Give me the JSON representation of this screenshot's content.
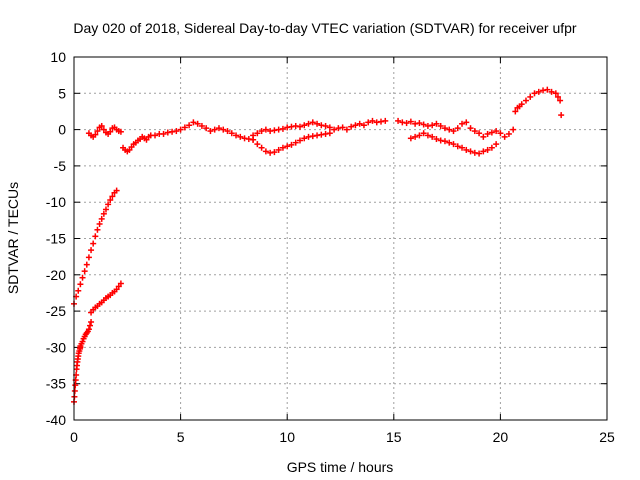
{
  "chart_data": {
    "type": "scatter",
    "title": "Day 020 of 2018, Sidereal Day-to-day VTEC variation (SDTVAR) for receiver ufpr",
    "xlabel": "GPS time / hours",
    "ylabel": "SDTVAR / TECUs",
    "xlim": [
      0,
      25
    ],
    "ylim": [
      -40,
      10
    ],
    "x_ticks": [
      0,
      5,
      10,
      15,
      20,
      25
    ],
    "y_ticks": [
      -40,
      -35,
      -30,
      -25,
      -20,
      -15,
      -10,
      -5,
      0,
      5,
      10
    ],
    "grid": true,
    "marker": "plus",
    "series_color": "#ff0000",
    "series": [
      {
        "x": [
          0.0,
          0.02,
          0.04,
          0.06,
          0.08,
          0.1,
          0.12,
          0.14,
          0.16,
          0.18,
          0.2,
          0.22,
          0.25,
          0.28,
          0.3
        ],
        "y": [
          -37.5,
          -36.8,
          -36.0,
          -35.2,
          -34.5,
          -33.8,
          -33.0,
          -32.5,
          -32.0,
          -31.6,
          -31.2,
          -30.8,
          -30.5,
          -30.2,
          -30.0
        ]
      },
      {
        "x": [
          0.3,
          0.35,
          0.4,
          0.45,
          0.5,
          0.55,
          0.6,
          0.65,
          0.7,
          0.75,
          0.8
        ],
        "y": [
          -29.8,
          -29.5,
          -29.2,
          -28.8,
          -28.5,
          -28.2,
          -28.0,
          -27.8,
          -27.5,
          -27.0,
          -26.5
        ]
      },
      {
        "x": [
          0.8,
          0.9,
          1.0,
          1.1,
          1.2,
          1.3,
          1.4,
          1.5,
          1.6,
          1.7,
          1.8,
          1.9,
          2.0,
          2.1,
          2.2
        ],
        "y": [
          -25.2,
          -24.8,
          -24.5,
          -24.3,
          -24.0,
          -23.8,
          -23.5,
          -23.2,
          -23.0,
          -22.8,
          -22.5,
          -22.3,
          -22.0,
          -21.6,
          -21.2
        ]
      },
      {
        "x": [
          0.0,
          0.1,
          0.2,
          0.3,
          0.4,
          0.5,
          0.6,
          0.7,
          0.8,
          0.9,
          1.0,
          1.1,
          1.2,
          1.3,
          1.4,
          1.5,
          1.6,
          1.7,
          1.8,
          1.9,
          2.0
        ],
        "y": [
          -24.0,
          -23.0,
          -22.2,
          -21.3,
          -20.4,
          -19.5,
          -18.6,
          -17.6,
          -16.6,
          -15.7,
          -14.7,
          -13.8,
          -13.0,
          -12.3,
          -11.6,
          -11.0,
          -10.3,
          -9.7,
          -9.2,
          -8.7,
          -8.4
        ]
      },
      {
        "x": [
          0.7,
          0.8,
          0.9,
          1.0,
          1.1,
          1.2,
          1.3,
          1.4,
          1.5,
          1.6,
          1.7,
          1.8,
          1.9,
          2.0,
          2.1,
          2.2
        ],
        "y": [
          -0.5,
          -0.8,
          -1.0,
          -0.7,
          -0.2,
          0.3,
          0.5,
          0.0,
          -0.4,
          -0.6,
          -0.3,
          0.2,
          0.3,
          0.0,
          -0.2,
          -0.3
        ]
      },
      {
        "x": [
          2.3,
          2.4,
          2.5,
          2.6,
          2.7,
          2.8,
          2.9,
          3.0,
          3.1,
          3.2,
          3.3,
          3.4,
          3.5,
          3.6,
          3.8,
          4.0,
          4.2,
          4.4,
          4.6,
          4.8,
          5.0,
          5.2,
          5.4,
          5.6,
          5.8,
          6.0,
          6.2,
          6.4,
          6.6,
          6.8,
          7.0,
          7.2,
          7.4,
          7.6,
          7.8,
          8.0,
          8.2,
          8.4
        ],
        "y": [
          -2.5,
          -2.8,
          -3.0,
          -2.8,
          -2.4,
          -2.0,
          -1.8,
          -1.5,
          -1.3,
          -1.0,
          -1.2,
          -1.4,
          -1.0,
          -0.8,
          -0.8,
          -0.6,
          -0.6,
          -0.4,
          -0.3,
          -0.2,
          0.0,
          0.3,
          0.6,
          1.0,
          0.8,
          0.5,
          0.2,
          -0.2,
          0.0,
          0.2,
          0.0,
          -0.2,
          -0.5,
          -0.8,
          -1.0,
          -1.2,
          -1.3,
          -1.4
        ]
      },
      {
        "x": [
          8.4,
          8.6,
          8.8,
          9.0,
          9.2,
          9.4,
          9.6,
          9.8,
          10.0,
          10.2,
          10.4,
          10.6,
          10.8,
          11.0,
          11.2,
          11.4,
          11.6,
          11.8,
          12.0
        ],
        "y": [
          -1.4,
          -2.0,
          -2.5,
          -3.0,
          -3.2,
          -3.1,
          -2.8,
          -2.5,
          -2.3,
          -2.1,
          -1.8,
          -1.5,
          -1.2,
          -1.0,
          -0.9,
          -0.8,
          -0.7,
          -0.6,
          -0.5
        ]
      },
      {
        "x": [
          8.4,
          8.6,
          8.8,
          9.0,
          9.2,
          9.4,
          9.6,
          9.8,
          10.0,
          10.2,
          10.4,
          10.6,
          10.8,
          11.0,
          11.2,
          11.4,
          11.6,
          11.8,
          12.0
        ],
        "y": [
          -0.8,
          -0.5,
          -0.2,
          0.0,
          -0.2,
          -0.1,
          0.0,
          0.1,
          0.3,
          0.4,
          0.5,
          0.4,
          0.6,
          0.8,
          1.0,
          0.8,
          0.6,
          0.5,
          0.3
        ]
      },
      {
        "x": [
          12.2,
          12.4,
          12.6,
          12.8,
          13.0,
          13.2,
          13.4,
          13.6,
          13.8,
          14.0,
          14.2,
          14.4,
          14.6
        ],
        "y": [
          0.0,
          0.2,
          0.3,
          0.0,
          0.4,
          0.6,
          0.8,
          0.6,
          1.0,
          1.2,
          1.0,
          1.1,
          1.2
        ]
      },
      {
        "x": [
          15.2,
          15.4,
          15.6,
          15.8,
          16.0,
          16.2,
          16.4,
          16.6,
          16.8,
          17.0,
          17.2,
          17.4,
          17.6,
          17.8,
          18.0,
          18.2,
          18.4
        ],
        "y": [
          1.2,
          1.0,
          0.9,
          1.1,
          0.8,
          0.9,
          0.7,
          0.5,
          0.6,
          0.8,
          0.5,
          0.2,
          0.0,
          -0.2,
          0.2,
          0.8,
          1.0
        ]
      },
      {
        "x": [
          15.8,
          16.0,
          16.2,
          16.4,
          16.6,
          16.8,
          17.0,
          17.2,
          17.4,
          17.6,
          17.8,
          18.0,
          18.2,
          18.4,
          18.6,
          18.8,
          19.0,
          19.2,
          19.4,
          19.6,
          19.8
        ],
        "y": [
          -1.2,
          -1.0,
          -0.8,
          -0.5,
          -0.8,
          -1.0,
          -1.3,
          -1.5,
          -1.6,
          -1.8,
          -2.0,
          -2.3,
          -2.5,
          -2.8,
          -3.0,
          -3.2,
          -3.3,
          -3.0,
          -2.8,
          -2.5,
          -2.0
        ]
      },
      {
        "x": [
          18.6,
          18.8,
          19.0,
          19.2,
          19.4,
          19.6,
          19.8,
          20.0,
          20.2,
          20.4,
          20.6
        ],
        "y": [
          0.2,
          -0.2,
          -0.5,
          -1.0,
          -0.6,
          -0.4,
          -0.2,
          -0.5,
          -1.0,
          -0.6,
          0.0
        ]
      },
      {
        "x": [
          20.7,
          20.8,
          20.9,
          21.0,
          21.2,
          21.4,
          21.6,
          21.8,
          22.0,
          22.2,
          22.4,
          22.6,
          22.7,
          22.8
        ],
        "y": [
          2.5,
          3.0,
          3.2,
          3.5,
          4.0,
          4.5,
          5.0,
          5.2,
          5.4,
          5.5,
          5.2,
          5.0,
          4.5,
          4.0
        ]
      },
      {
        "x": [
          22.85
        ],
        "y": [
          2.0
        ]
      }
    ]
  }
}
